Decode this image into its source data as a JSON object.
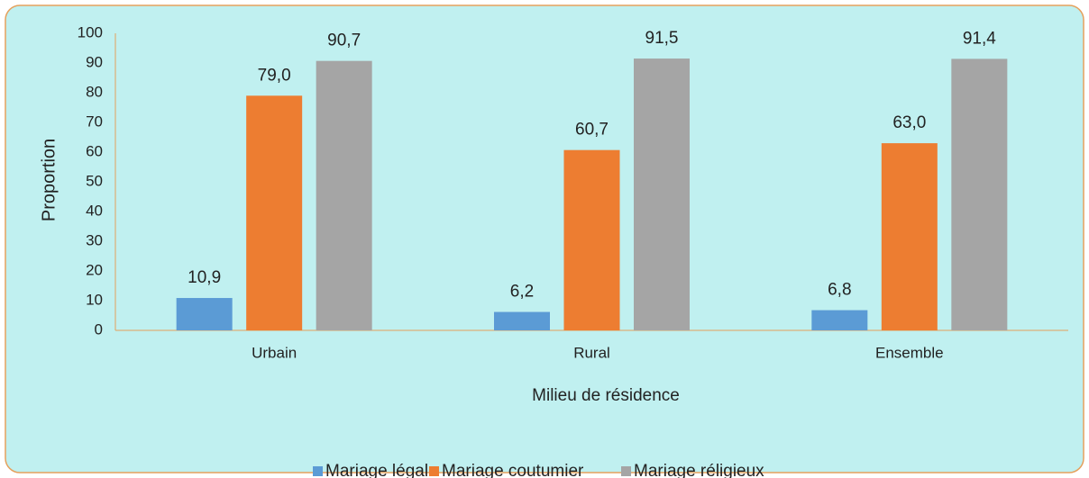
{
  "chart_data": {
    "type": "bar",
    "x_label": "Milieu de résidence",
    "y_label": "Proportion",
    "categories": [
      "Urbain",
      "Rural",
      "Ensemble"
    ],
    "series": [
      {
        "name": "Mariage légal",
        "color": "#5b9bd5",
        "values": [
          10.9,
          6.2,
          6.8
        ],
        "value_labels": [
          "10,9",
          "6,2",
          "6,8"
        ]
      },
      {
        "name": "Mariage coutumier",
        "color": "#ed7d31",
        "values": [
          79.0,
          60.7,
          63.0
        ],
        "value_labels": [
          "79,0",
          "60,7",
          "63,0"
        ]
      },
      {
        "name": "Mariage réligieux",
        "color": "#a5a5a5",
        "values": [
          90.7,
          91.5,
          91.4
        ],
        "value_labels": [
          "90,7",
          "91,5",
          "91,4"
        ]
      }
    ],
    "ylim": [
      0,
      100
    ],
    "yticks": [
      0,
      10,
      20,
      30,
      40,
      50,
      60,
      70,
      80,
      90,
      100
    ],
    "grid": false,
    "legend": "bottom"
  }
}
